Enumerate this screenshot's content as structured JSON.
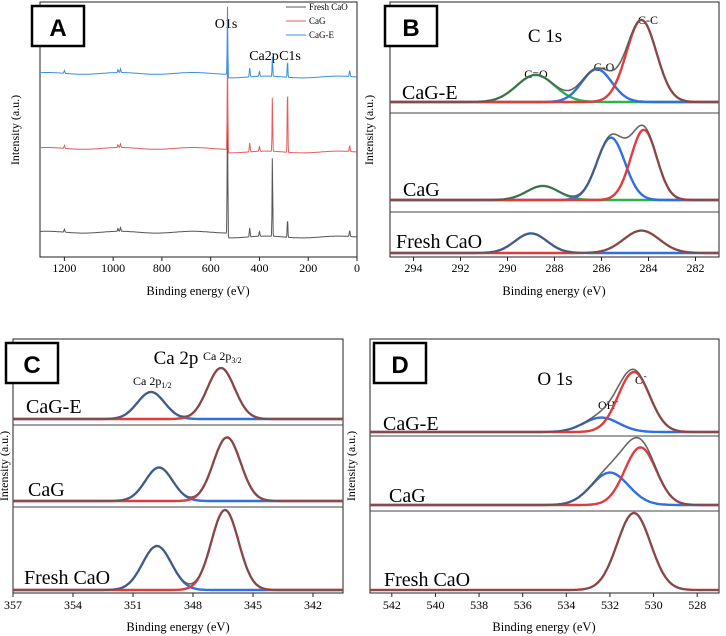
{
  "chart_data": [
    {
      "panel": "A",
      "type": "line",
      "xlabel": "Binding energy (eV)",
      "ylabel": "Intensity (a.u.)",
      "xlim": [
        1300,
        0
      ],
      "xticks": [
        "1200",
        "1000",
        "800",
        "600",
        "400",
        "200",
        "0"
      ],
      "legend": {
        "placement": "top-right",
        "entries": [
          "Fresh CaO",
          "CaG",
          "CaG-E"
        ]
      },
      "colors": {
        "Fresh CaO": "#555555",
        "CaG": "#e35d5d",
        "CaG-E": "#3a8fde"
      },
      "peak_labels": [
        "O1s",
        "Ca2p",
        "C1s"
      ],
      "peaks_eV": {
        "O1s": 531,
        "Ca2p": 347,
        "C1s": 285
      }
    },
    {
      "panel": "B",
      "type": "line",
      "title": "C 1s",
      "xlabel": "Binding energy (eV)",
      "ylabel": "Intensity (a.u.)",
      "xlim": [
        295,
        281
      ],
      "xticks": [
        "294",
        "292",
        "290",
        "288",
        "286",
        "284",
        "282"
      ],
      "samples": [
        "CaG-E",
        "CaG",
        "Fresh CaO"
      ],
      "peak_labels": [
        "C=O",
        "C-O",
        "C-C"
      ],
      "fits": {
        "CaG-E": [
          {
            "label": "C=O",
            "center": 288.8,
            "height": 0.33,
            "fwhm": 1.9,
            "color": "#2bb24c"
          },
          {
            "label": "C-O",
            "center": 286.2,
            "height": 0.4,
            "fwhm": 1.5,
            "color": "#2f6fe0"
          },
          {
            "label": "C-C",
            "center": 284.3,
            "height": 1.0,
            "fwhm": 1.5,
            "color": "#e03c3c"
          }
        ],
        "CaG": [
          {
            "label": "C=O",
            "center": 288.5,
            "height": 0.18,
            "fwhm": 1.6,
            "color": "#2bb24c"
          },
          {
            "label": "C-O",
            "center": 285.6,
            "height": 0.8,
            "fwhm": 1.4,
            "color": "#2f6fe0"
          },
          {
            "label": "C-C",
            "center": 284.2,
            "height": 0.9,
            "fwhm": 1.3,
            "color": "#e03c3c"
          }
        ],
        "Fresh CaO": [
          {
            "label": "C=O",
            "center": 289.0,
            "height": 0.7,
            "fwhm": 1.6,
            "color": "#2f6fe0"
          },
          {
            "label": "C-C",
            "center": 284.3,
            "height": 0.8,
            "fwhm": 1.8,
            "color": "#e03c3c"
          }
        ]
      }
    },
    {
      "panel": "C",
      "type": "line",
      "title": "Ca 2p",
      "xlabel": "Binding energy (eV)",
      "ylabel": "Intensity (a.u.)",
      "xlim": [
        357,
        340.5
      ],
      "xticks": [
        "357",
        "354",
        "351",
        "348",
        "345",
        "342"
      ],
      "samples": [
        "CaG-E",
        "CaG",
        "Fresh CaO"
      ],
      "peak_labels": {
        "p12": {
          "base": "Ca 2p",
          "sub": "1/2"
        },
        "p32": {
          "base": "Ca 2p",
          "sub": "3/2"
        }
      },
      "fits": {
        "CaG-E": [
          {
            "label": "Ca 2p1/2",
            "center": 350.1,
            "height": 0.45,
            "fwhm": 1.6,
            "color": "#2f6fe0"
          },
          {
            "label": "Ca 2p3/2",
            "center": 346.6,
            "height": 0.85,
            "fwhm": 1.6,
            "color": "#e03c3c"
          }
        ],
        "CaG": [
          {
            "label": "Ca 2p1/2",
            "center": 349.7,
            "height": 0.5,
            "fwhm": 1.6,
            "color": "#2f6fe0"
          },
          {
            "label": "Ca 2p3/2",
            "center": 346.3,
            "height": 0.95,
            "fwhm": 1.6,
            "color": "#e03c3c"
          }
        ],
        "Fresh CaO": [
          {
            "label": "Ca 2p1/2",
            "center": 349.8,
            "height": 0.55,
            "fwhm": 1.7,
            "color": "#2f6fe0"
          },
          {
            "label": "Ca 2p3/2",
            "center": 346.4,
            "height": 1.0,
            "fwhm": 1.6,
            "color": "#e03c3c"
          }
        ]
      }
    },
    {
      "panel": "D",
      "type": "line",
      "title": "O 1s",
      "xlabel": "Binding energy (eV)",
      "ylabel": "Intensity (a.u.)",
      "xlim": [
        543,
        527
      ],
      "xticks": [
        "542",
        "540",
        "538",
        "536",
        "534",
        "532",
        "530",
        "528"
      ],
      "samples": [
        "CaG-E",
        "CaG",
        "Fresh CaO"
      ],
      "peak_labels": {
        "oh": {
          "base": "OH",
          "sup": "-"
        },
        "o": {
          "base": "O",
          "sup": "-"
        }
      },
      "fits": {
        "CaG-E": [
          {
            "label": "OH-",
            "center": 532.4,
            "height": 0.18,
            "fwhm": 1.9,
            "color": "#2f6fe0"
          },
          {
            "label": "O-",
            "center": 530.9,
            "height": 0.75,
            "fwhm": 1.7,
            "color": "#e03c3c"
          }
        ],
        "CaG": [
          {
            "label": "OH-",
            "center": 532.0,
            "height": 0.45,
            "fwhm": 2.0,
            "color": "#2f6fe0"
          },
          {
            "label": "O-",
            "center": 530.6,
            "height": 0.8,
            "fwhm": 1.7,
            "color": "#e03c3c"
          }
        ],
        "Fresh CaO": [
          {
            "label": "O-",
            "center": 530.9,
            "height": 1.0,
            "fwhm": 1.8,
            "color": "#e03c3c"
          }
        ]
      }
    }
  ]
}
